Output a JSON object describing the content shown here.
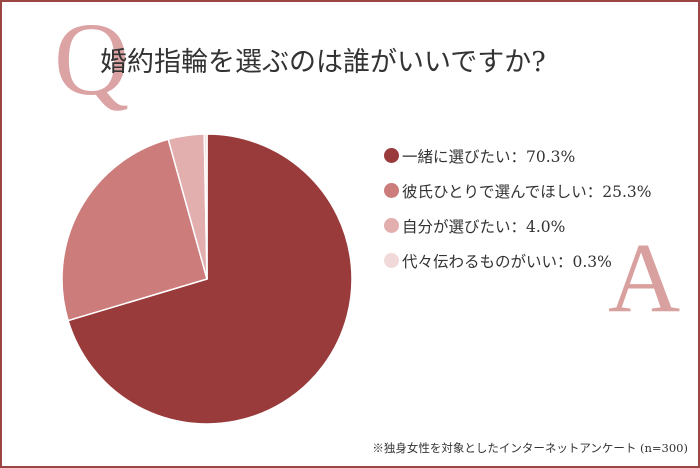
{
  "chart_data": {
    "type": "pie",
    "title": "婚約指輪を選ぶのは誰がいいですか?",
    "q_mark": "Q",
    "a_mark": "A",
    "legend_position": "right",
    "slices": [
      {
        "label": "一緒に選びたい",
        "value": 70.3,
        "display": "70.3%",
        "color": "#9a3b3b"
      },
      {
        "label": "彼氏ひとりで選んでほしい",
        "value": 25.3,
        "display": "25.3%",
        "color": "#cd7c7c"
      },
      {
        "label": "自分が選びたい",
        "value": 4.0,
        "display": "4.0%",
        "color": "#e2aeae"
      },
      {
        "label": "代々伝わるものがいい",
        "value": 0.3,
        "display": "0.3%",
        "color": "#f2d9d9"
      }
    ],
    "separator": "：",
    "note": "※独身女性を対象としたインターネットアンケート (n=300)"
  }
}
